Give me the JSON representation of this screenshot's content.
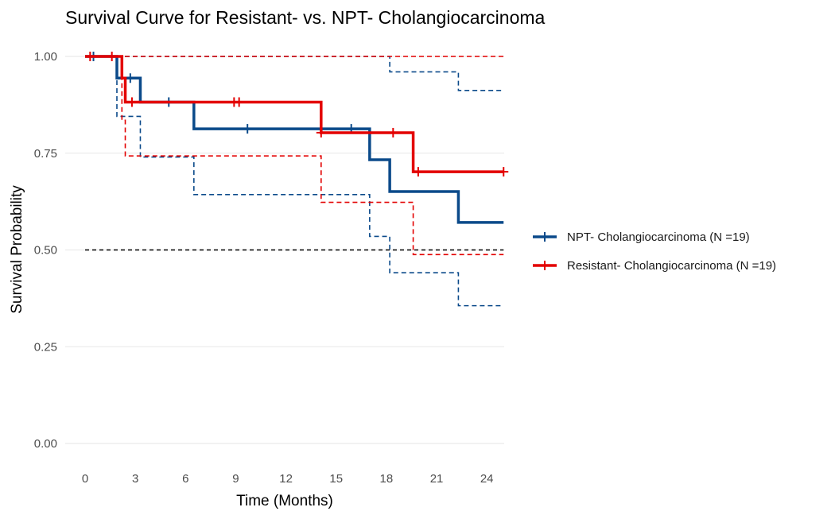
{
  "chart_data": {
    "type": "line",
    "title": "Survival Curve for Resistant- vs. NPT- Cholangiocarcinoma",
    "xlabel": "Time (Months)",
    "ylabel": "Survival Probability",
    "xlim": [
      0,
      25
    ],
    "ylim": [
      0,
      1
    ],
    "x_ticks": [
      0,
      3,
      6,
      9,
      12,
      15,
      18,
      21,
      24
    ],
    "x_tick_labels": [
      "0",
      "3",
      "6",
      "9",
      "12",
      "15",
      "18",
      "21",
      "24"
    ],
    "y_ticks": [
      0,
      0.25,
      0.5,
      0.75,
      1.0
    ],
    "y_tick_labels": [
      "0.00",
      "0.25",
      "0.50",
      "0.75",
      "1.00"
    ],
    "grid": true,
    "legend_position": "right",
    "reference_line": {
      "y": 0.5,
      "color": "#000000",
      "style": "dashed"
    },
    "series": [
      {
        "name": "NPT- Cholangiocarcinoma (N =19)",
        "color": "#0b4a8a",
        "step": {
          "x": [
            0,
            1.9,
            3.3,
            6.5,
            17.0,
            18.2,
            22.3,
            25.0
          ],
          "y": [
            1.0,
            0.944,
            0.882,
            0.813,
            0.733,
            0.651,
            0.571,
            0.571
          ]
        },
        "upper": {
          "x": [
            0,
            18.2,
            22.3,
            25.0
          ],
          "y": [
            1.0,
            0.96,
            0.912,
            0.912
          ]
        },
        "lower": {
          "x": [
            0,
            1.9,
            3.3,
            6.5,
            17.0,
            18.2,
            22.3,
            25.0
          ],
          "y": [
            1.0,
            0.845,
            0.74,
            0.643,
            0.535,
            0.441,
            0.356,
            0.356
          ]
        },
        "censor": {
          "x": [
            0.5,
            2.7,
            5.0,
            9.7,
            15.9
          ],
          "y": [
            1.0,
            0.944,
            0.882,
            0.813,
            0.813
          ]
        }
      },
      {
        "name": "Resistant- Cholangiocarcinoma (N =19)",
        "color": "#e30000",
        "step": {
          "x": [
            0,
            2.2,
            2.4,
            14.1,
            19.6,
            25.0
          ],
          "y": [
            1.0,
            0.944,
            0.882,
            0.803,
            0.702,
            0.702
          ]
        },
        "upper": {
          "x": [
            0,
            25.0
          ],
          "y": [
            1.0,
            1.0
          ]
        },
        "lower": {
          "x": [
            0,
            2.2,
            2.4,
            14.1,
            19.6,
            25.0
          ],
          "y": [
            1.0,
            0.835,
            0.743,
            0.623,
            0.488,
            0.488
          ]
        },
        "censor": {
          "x": [
            0.3,
            1.6,
            2.8,
            8.9,
            9.2,
            14.1,
            18.4,
            19.9,
            25.0
          ],
          "y": [
            1.0,
            1.0,
            0.882,
            0.882,
            0.882,
            0.803,
            0.803,
            0.702,
            0.702
          ]
        }
      }
    ]
  }
}
